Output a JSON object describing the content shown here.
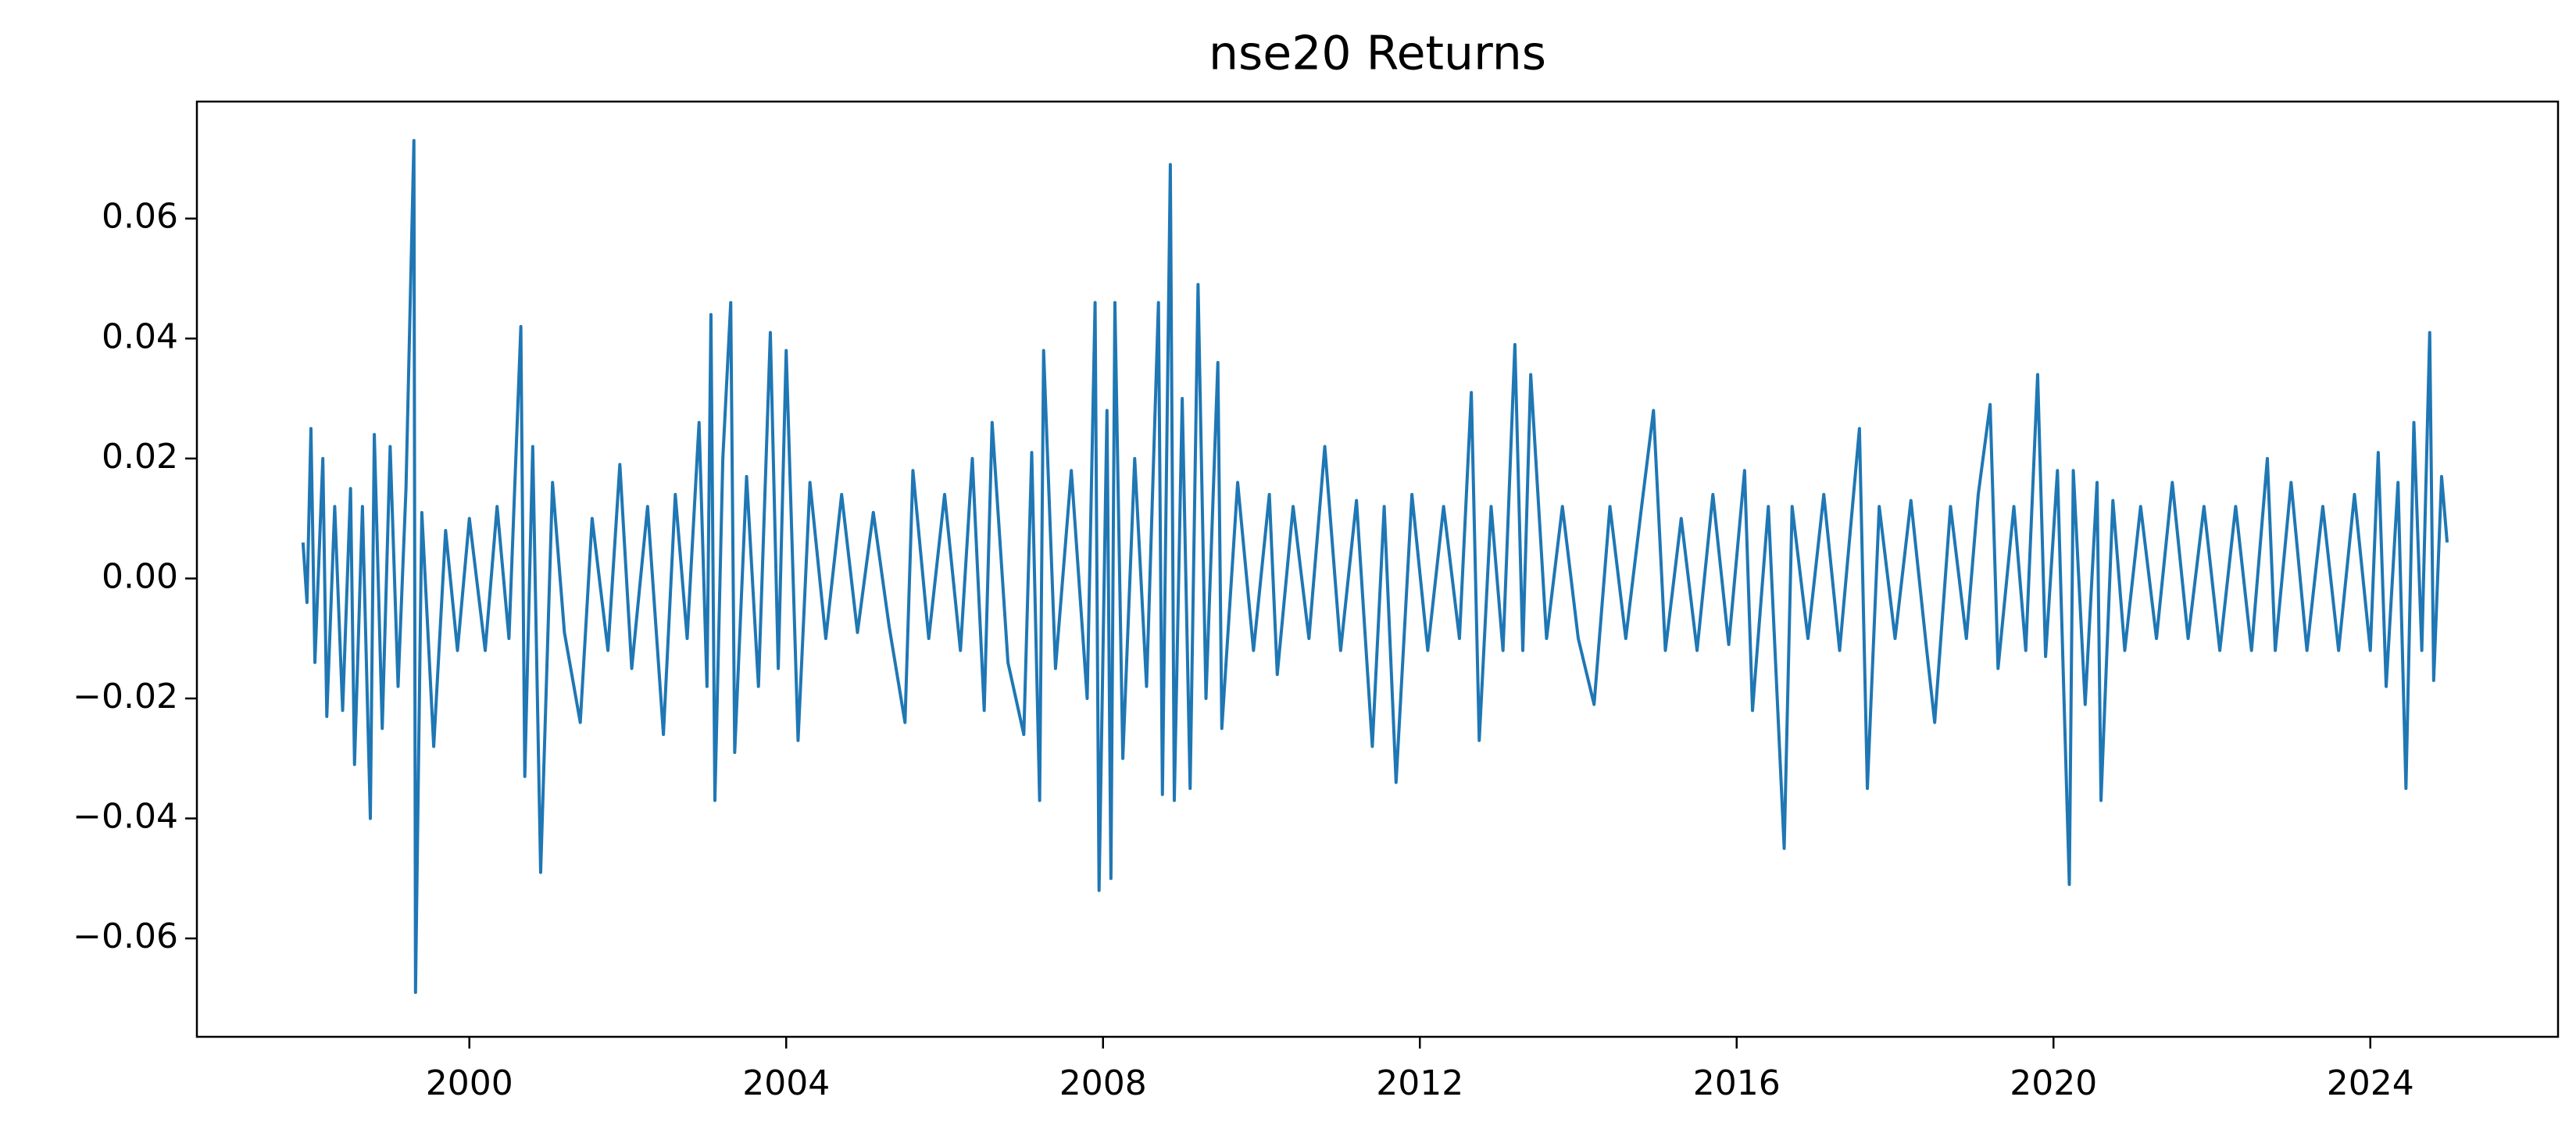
{
  "chart_data": {
    "type": "line",
    "title": "nse20 Returns",
    "color": "#1f77b4",
    "x": [
      1997.9,
      1997.95,
      1998.0,
      1998.05,
      1998.15,
      1998.2,
      1998.3,
      1998.4,
      1998.5,
      1998.55,
      1998.65,
      1998.75,
      1998.8,
      1998.9,
      1999.0,
      1999.1,
      1999.2,
      1999.3,
      1999.32,
      1999.4,
      1999.55,
      1999.7,
      1999.85,
      2000.0,
      2000.2,
      2000.35,
      2000.5,
      2000.65,
      2000.7,
      2000.8,
      2000.9,
      2001.05,
      2001.2,
      2001.4,
      2001.55,
      2001.75,
      2001.9,
      2002.05,
      2002.25,
      2002.45,
      2002.6,
      2002.75,
      2002.9,
      2003.0,
      2003.05,
      2003.1,
      2003.2,
      2003.3,
      2003.35,
      2003.5,
      2003.65,
      2003.8,
      2003.9,
      2004.0,
      2004.15,
      2004.3,
      2004.5,
      2004.7,
      2004.9,
      2005.1,
      2005.3,
      2005.5,
      2005.6,
      2005.8,
      2006.0,
      2006.2,
      2006.35,
      2006.5,
      2006.6,
      2006.8,
      2007.0,
      2007.1,
      2007.2,
      2007.25,
      2007.4,
      2007.6,
      2007.8,
      2007.9,
      2007.95,
      2008.05,
      2008.1,
      2008.15,
      2008.25,
      2008.4,
      2008.55,
      2008.7,
      2008.75,
      2008.85,
      2008.9,
      2009.0,
      2009.1,
      2009.2,
      2009.3,
      2009.45,
      2009.5,
      2009.7,
      2009.9,
      2010.1,
      2010.2,
      2010.4,
      2010.6,
      2010.8,
      2011.0,
      2011.2,
      2011.4,
      2011.55,
      2011.7,
      2011.9,
      2012.1,
      2012.3,
      2012.5,
      2012.65,
      2012.75,
      2012.9,
      2013.05,
      2013.2,
      2013.3,
      2013.4,
      2013.6,
      2013.8,
      2014.0,
      2014.2,
      2014.4,
      2014.6,
      2014.8,
      2014.95,
      2015.1,
      2015.3,
      2015.5,
      2015.7,
      2015.9,
      2016.1,
      2016.2,
      2016.4,
      2016.6,
      2016.7,
      2016.9,
      2017.1,
      2017.3,
      2017.55,
      2017.65,
      2017.8,
      2018.0,
      2018.2,
      2018.4,
      2018.5,
      2018.7,
      2018.9,
      2019.05,
      2019.2,
      2019.3,
      2019.5,
      2019.65,
      2019.8,
      2019.9,
      2020.05,
      2020.2,
      2020.25,
      2020.4,
      2020.55,
      2020.6,
      2020.75,
      2020.9,
      2021.1,
      2021.3,
      2021.5,
      2021.7,
      2021.9,
      2022.1,
      2022.3,
      2022.5,
      2022.7,
      2022.8,
      2023.0,
      2023.2,
      2023.4,
      2023.6,
      2023.8,
      2024.0,
      2024.1,
      2024.2,
      2024.35,
      2024.45,
      2024.55,
      2024.65,
      2024.75,
      2024.8,
      2024.9,
      2024.97
    ],
    "values": [
      0.006,
      -0.004,
      0.025,
      -0.014,
      0.02,
      -0.023,
      0.012,
      -0.022,
      0.015,
      -0.031,
      0.012,
      -0.04,
      0.024,
      -0.025,
      0.022,
      -0.018,
      0.015,
      0.073,
      -0.069,
      0.011,
      -0.028,
      0.008,
      -0.012,
      0.01,
      -0.012,
      0.012,
      -0.01,
      0.042,
      -0.033,
      0.022,
      -0.049,
      0.016,
      -0.009,
      -0.024,
      0.01,
      -0.012,
      0.019,
      -0.015,
      0.012,
      -0.026,
      0.014,
      -0.01,
      0.026,
      -0.018,
      0.044,
      -0.037,
      0.02,
      0.046,
      -0.029,
      0.017,
      -0.018,
      0.041,
      -0.015,
      0.038,
      -0.027,
      0.016,
      -0.01,
      0.014,
      -0.009,
      0.011,
      -0.008,
      -0.024,
      0.018,
      -0.01,
      0.014,
      -0.012,
      0.02,
      -0.022,
      0.026,
      -0.014,
      -0.026,
      0.021,
      -0.037,
      0.038,
      -0.015,
      0.018,
      -0.02,
      0.046,
      -0.052,
      0.028,
      -0.05,
      0.046,
      -0.03,
      0.02,
      -0.018,
      0.046,
      -0.036,
      0.069,
      -0.037,
      0.03,
      -0.035,
      0.049,
      -0.02,
      0.036,
      -0.025,
      0.016,
      -0.012,
      0.014,
      -0.016,
      0.012,
      -0.01,
      0.022,
      -0.012,
      0.013,
      -0.028,
      0.012,
      -0.034,
      0.014,
      -0.012,
      0.012,
      -0.01,
      0.031,
      -0.027,
      0.012,
      -0.012,
      0.039,
      -0.012,
      0.034,
      -0.01,
      0.012,
      -0.01,
      -0.021,
      0.012,
      -0.01,
      0.012,
      0.028,
      -0.012,
      0.01,
      -0.012,
      0.014,
      -0.011,
      0.018,
      -0.022,
      0.012,
      -0.045,
      0.012,
      -0.01,
      0.014,
      -0.012,
      0.025,
      -0.035,
      0.012,
      -0.01,
      0.013,
      -0.012,
      -0.024,
      0.012,
      -0.01,
      0.014,
      0.029,
      -0.015,
      0.012,
      -0.012,
      0.034,
      -0.013,
      0.018,
      -0.051,
      0.018,
      -0.021,
      0.016,
      -0.037,
      0.013,
      -0.012,
      0.012,
      -0.01,
      0.016,
      -0.01,
      0.012,
      -0.012,
      0.012,
      -0.012,
      0.02,
      -0.012,
      0.016,
      -0.012,
      0.012,
      -0.012,
      0.014,
      -0.012,
      0.021,
      -0.018,
      0.016,
      -0.035,
      0.026,
      -0.012,
      0.041,
      -0.017,
      0.017,
      0.006
    ],
    "xlim": [
      1996.56,
      2026.37
    ],
    "xticks": [
      2000,
      2004,
      2008,
      2012,
      2016,
      2020,
      2024
    ],
    "ylim": [
      -0.0764,
      0.0795
    ],
    "yticks": [
      {
        "value": -0.06,
        "label": "−0.06"
      },
      {
        "value": -0.04,
        "label": "−0.04"
      },
      {
        "value": -0.02,
        "label": "−0.02"
      },
      {
        "value": 0,
        "label": "0.00"
      },
      {
        "value": 0.02,
        "label": "0.02"
      },
      {
        "value": 0.04,
        "label": "0.04"
      },
      {
        "value": 0.06,
        "label": "0.06"
      }
    ],
    "grid": false
  }
}
